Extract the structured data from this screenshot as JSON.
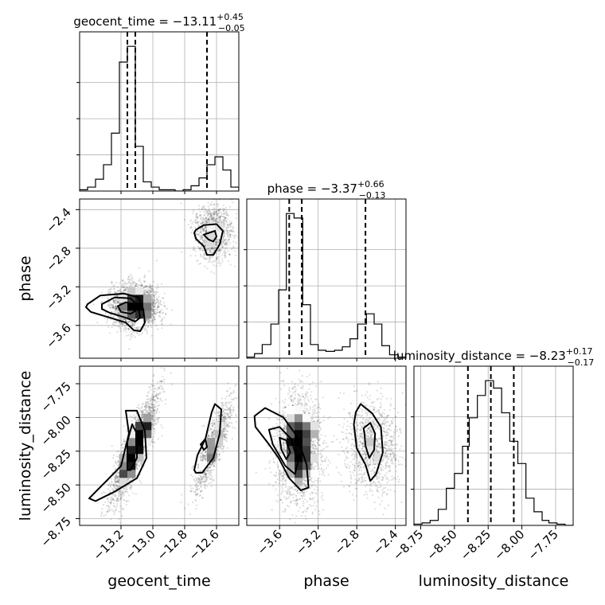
{
  "chart_data": {
    "type": "corner",
    "parameters": [
      "geocent_time",
      "phase",
      "luminosity_distance"
    ],
    "titles": [
      {
        "param": "geocent_time",
        "label": "geocent_time = ",
        "median": "−13.11",
        "plus": "+0.45",
        "minus": "−0.05"
      },
      {
        "param": "phase",
        "label": "phase = ",
        "median": "−3.37",
        "plus": "+0.66",
        "minus": "−0.13"
      },
      {
        "param": "luminosity_distance",
        "label": "luminosity_distance = ",
        "median": "−8.23",
        "plus": "+0.17",
        "minus": "−0.17"
      }
    ],
    "ranges": {
      "geocent_time": [
        -13.46,
        -12.46
      ],
      "phase": [
        -3.94,
        -2.29
      ],
      "luminosity_distance": [
        -8.8,
        -7.62
      ]
    },
    "ticks": {
      "geocent_time": {
        "values": [
          -13.2,
          -13.0,
          -12.8,
          -12.6
        ],
        "labels": [
          "−13.2",
          "−13.0",
          "−12.8",
          "−12.6"
        ]
      },
      "phase": {
        "values": [
          -3.6,
          -3.2,
          -2.8,
          -2.4
        ],
        "labels": [
          "−3.6",
          "−3.2",
          "−2.8",
          "−2.4"
        ]
      },
      "luminosity_distance": {
        "values": [
          -8.75,
          -8.5,
          -8.25,
          -8.0,
          -7.75
        ],
        "labels": [
          "−8.75",
          "−8.50",
          "−8.25",
          "−8.00",
          "−7.75"
        ]
      }
    },
    "histograms": {
      "geocent_time": {
        "bin_edges": [
          -13.46,
          -13.41,
          -13.36,
          -13.31,
          -13.26,
          -13.21,
          -13.16,
          -13.11,
          -13.06,
          -13.01,
          -12.96,
          -12.91,
          -12.86,
          -12.81,
          -12.76,
          -12.71,
          -12.66,
          -12.61,
          -12.56,
          -12.51,
          -12.46
        ],
        "counts": [
          1,
          3,
          9,
          20,
          44,
          98,
          110,
          34,
          7,
          3,
          1,
          1,
          0,
          1,
          4,
          10,
          20,
          26,
          16,
          3
        ],
        "quantiles": [
          -13.16,
          -13.11,
          -12.66
        ]
      },
      "phase": {
        "bin_edges": [
          -3.94,
          -3.86,
          -3.78,
          -3.69,
          -3.61,
          -3.53,
          -3.45,
          -3.36,
          -3.28,
          -3.2,
          -3.12,
          -3.03,
          -2.95,
          -2.87,
          -2.79,
          -2.7,
          -2.62,
          -2.54,
          -2.46,
          -2.37,
          -2.29
        ],
        "counts": [
          1,
          4,
          12,
          30,
          60,
          127,
          123,
          47,
          12,
          7,
          6,
          7,
          10,
          17,
          30,
          39,
          30,
          11,
          3,
          1
        ],
        "quantiles": [
          -3.5,
          -3.37,
          -2.71
        ]
      },
      "luminosity_distance": {
        "bin_edges": [
          -8.8,
          -8.74,
          -8.68,
          -8.62,
          -8.56,
          -8.5,
          -8.44,
          -8.39,
          -8.33,
          -8.27,
          -8.21,
          -8.15,
          -8.09,
          -8.03,
          -7.97,
          -7.91,
          -7.85,
          -7.8,
          -7.74,
          -7.68,
          -7.62
        ],
        "counts": [
          1,
          2,
          4,
          13,
          30,
          42,
          64,
          87,
          105,
          117,
          111,
          91,
          68,
          50,
          22,
          11,
          4,
          2,
          1,
          0
        ],
        "quantiles": [
          -8.4,
          -8.23,
          -8.06
        ]
      }
    },
    "joint_clusters": [
      {
        "geocent_time": [
          -13.11,
          0.07
        ],
        "phase": [
          -3.4,
          0.11
        ],
        "luminosity_distance": [
          -8.23,
          0.19
        ],
        "corr_gt_ld": 0.85,
        "corr_ph_ld": -0.7,
        "weight": 0.7
      },
      {
        "geocent_time": [
          -12.62,
          0.06
        ],
        "phase": [
          -2.63,
          0.14
        ],
        "luminosity_distance": [
          -8.22,
          0.17
        ],
        "corr_gt_ld": 0.85,
        "corr_ph_ld": 0.0,
        "weight": 0.3
      }
    ],
    "contours": {
      "phase_vs_geocent_time": [
        [
          [
            -13.41,
            -3.38
          ],
          [
            -13.33,
            -3.29
          ],
          [
            -13.18,
            -3.27
          ],
          [
            -13.09,
            -3.31
          ],
          [
            -13.06,
            -3.43
          ],
          [
            -13.05,
            -3.57
          ],
          [
            -13.08,
            -3.66
          ],
          [
            -13.12,
            -3.65
          ],
          [
            -13.17,
            -3.57
          ],
          [
            -13.27,
            -3.52
          ],
          [
            -13.39,
            -3.46
          ],
          [
            -13.42,
            -3.41
          ]
        ],
        [
          [
            -13.32,
            -3.38
          ],
          [
            -13.24,
            -3.31
          ],
          [
            -13.14,
            -3.32
          ],
          [
            -13.09,
            -3.4
          ],
          [
            -13.08,
            -3.52
          ],
          [
            -13.11,
            -3.56
          ],
          [
            -13.17,
            -3.52
          ],
          [
            -13.27,
            -3.47
          ],
          [
            -13.32,
            -3.43
          ]
        ],
        [
          [
            -13.22,
            -3.4
          ],
          [
            -13.17,
            -3.36
          ],
          [
            -13.12,
            -3.38
          ],
          [
            -13.11,
            -3.45
          ],
          [
            -13.14,
            -3.48
          ],
          [
            -13.2,
            -3.46
          ]
        ],
        [
          [
            -12.73,
            -2.61
          ],
          [
            -12.68,
            -2.56
          ],
          [
            -12.6,
            -2.55
          ],
          [
            -12.56,
            -2.62
          ],
          [
            -12.58,
            -2.76
          ],
          [
            -12.62,
            -2.87
          ],
          [
            -12.66,
            -2.87
          ],
          [
            -12.68,
            -2.78
          ],
          [
            -12.73,
            -2.7
          ],
          [
            -12.74,
            -2.64
          ]
        ],
        [
          [
            -12.68,
            -2.66
          ],
          [
            -12.61,
            -2.62
          ],
          [
            -12.6,
            -2.68
          ],
          [
            -12.62,
            -2.73
          ],
          [
            -12.65,
            -2.71
          ]
        ]
      ],
      "ld_vs_geocent_time": [
        [
          [
            -13.4,
            -8.6
          ],
          [
            -13.3,
            -8.48
          ],
          [
            -13.2,
            -8.36
          ],
          [
            -13.15,
            -8.12
          ],
          [
            -13.17,
            -7.95
          ],
          [
            -13.1,
            -7.95
          ],
          [
            -13.05,
            -8.1
          ],
          [
            -13.04,
            -8.3
          ],
          [
            -13.1,
            -8.45
          ],
          [
            -13.24,
            -8.55
          ],
          [
            -13.36,
            -8.62
          ]
        ],
        [
          [
            -13.16,
            -8.39
          ],
          [
            -13.16,
            -8.18
          ],
          [
            -13.13,
            -8.05
          ],
          [
            -13.1,
            -8.12
          ],
          [
            -13.1,
            -8.3
          ],
          [
            -13.14,
            -8.39
          ]
        ],
        [
          [
            -12.74,
            -8.39
          ],
          [
            -12.72,
            -8.28
          ],
          [
            -12.67,
            -8.16
          ],
          [
            -12.63,
            -7.96
          ],
          [
            -12.61,
            -7.9
          ],
          [
            -12.57,
            -7.94
          ],
          [
            -12.58,
            -8.12
          ],
          [
            -12.62,
            -8.3
          ],
          [
            -12.69,
            -8.41
          ],
          [
            -12.73,
            -8.41
          ]
        ],
        [
          [
            -12.7,
            -8.2
          ],
          [
            -12.67,
            -8.16
          ],
          [
            -12.66,
            -8.22
          ],
          [
            -12.68,
            -8.24
          ]
        ]
      ],
      "ld_vs_phase": [
        [
          [
            -3.86,
            -7.99
          ],
          [
            -3.75,
            -7.93
          ],
          [
            -3.56,
            -8.0
          ],
          [
            -3.42,
            -8.14
          ],
          [
            -3.32,
            -8.35
          ],
          [
            -3.3,
            -8.52
          ],
          [
            -3.38,
            -8.54
          ],
          [
            -3.5,
            -8.45
          ],
          [
            -3.61,
            -8.3
          ],
          [
            -3.72,
            -8.19
          ],
          [
            -3.85,
            -8.07
          ]
        ],
        [
          [
            -3.71,
            -8.09
          ],
          [
            -3.6,
            -8.07
          ],
          [
            -3.48,
            -8.16
          ],
          [
            -3.41,
            -8.33
          ],
          [
            -3.44,
            -8.42
          ],
          [
            -3.54,
            -8.36
          ],
          [
            -3.67,
            -8.2
          ]
        ],
        [
          [
            -3.6,
            -8.15
          ],
          [
            -3.53,
            -8.17
          ],
          [
            -3.49,
            -8.26
          ],
          [
            -3.53,
            -8.31
          ],
          [
            -3.58,
            -8.24
          ]
        ],
        [
          [
            -2.81,
            -7.96
          ],
          [
            -2.76,
            -7.9
          ],
          [
            -2.64,
            -7.97
          ],
          [
            -2.55,
            -8.07
          ],
          [
            -2.53,
            -8.26
          ],
          [
            -2.6,
            -8.42
          ],
          [
            -2.66,
            -8.47
          ],
          [
            -2.71,
            -8.35
          ],
          [
            -2.8,
            -8.23
          ],
          [
            -2.83,
            -8.05
          ]
        ],
        [
          [
            -2.73,
            -8.08
          ],
          [
            -2.66,
            -8.04
          ],
          [
            -2.61,
            -8.12
          ],
          [
            -2.62,
            -8.24
          ],
          [
            -2.67,
            -8.3
          ],
          [
            -2.71,
            -8.21
          ],
          [
            -2.72,
            -8.12
          ]
        ]
      ]
    }
  }
}
